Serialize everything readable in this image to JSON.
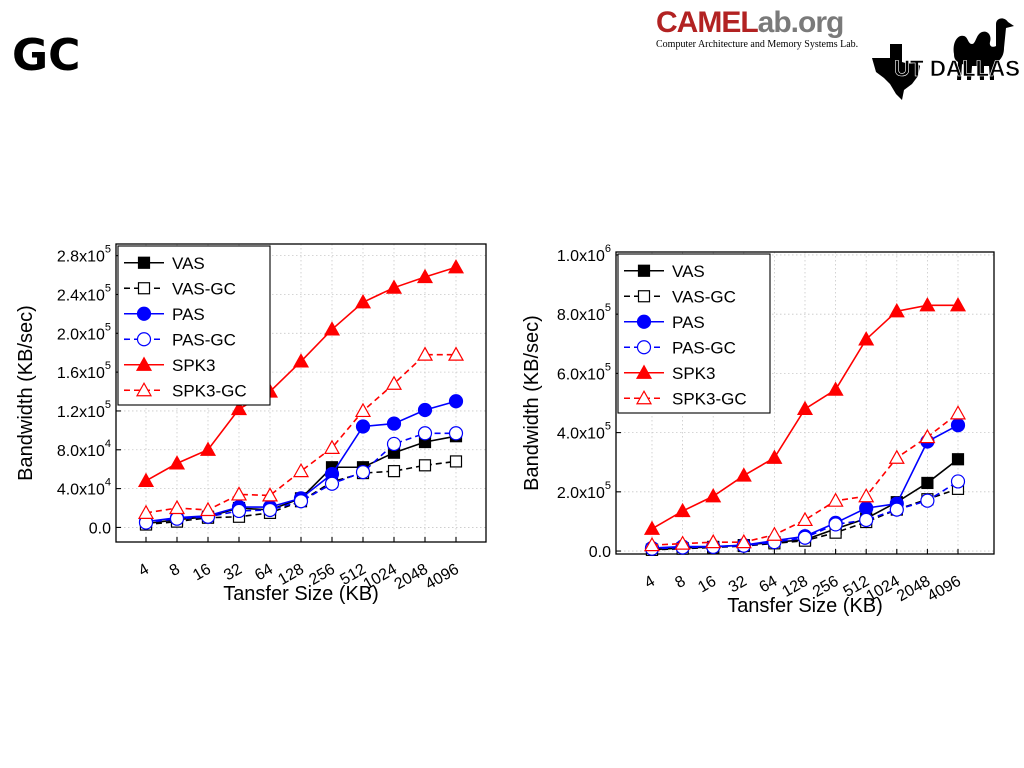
{
  "slide": {
    "title": "GC"
  },
  "logos": {
    "camel_brand_1": "CAMEL",
    "camel_brand_2": "ab.org",
    "camel_subtitle": "Computer Architecture and Memory Systems Lab.",
    "utd_text": "UT DALLAS"
  },
  "chart_data": [
    {
      "type": "line",
      "title": "",
      "xlabel": "Tansfer Size (KB)",
      "ylabel": "Bandwidth (KB/sec)",
      "categories": [
        "4",
        "8",
        "16",
        "32",
        "64",
        "128",
        "256",
        "512",
        "1024",
        "2048",
        "4096"
      ],
      "ylim": [
        -15000,
        292000
      ],
      "yticks": [
        0,
        40000,
        80000,
        120000,
        160000,
        200000,
        240000,
        280000
      ],
      "ytick_labels": [
        {
          "m": "0.0",
          "e": ""
        },
        {
          "m": "4.0x10",
          "e": "4"
        },
        {
          "m": "8.0x10",
          "e": "4"
        },
        {
          "m": "1.2x10",
          "e": "5"
        },
        {
          "m": "1.6x10",
          "e": "5"
        },
        {
          "m": "2.0x10",
          "e": "5"
        },
        {
          "m": "2.4x10",
          "e": "5"
        },
        {
          "m": "2.8x10",
          "e": "5"
        }
      ],
      "grid": true,
      "legend_position": "top-left",
      "series": [
        {
          "name": "VAS",
          "color": "#000000",
          "dashed": false,
          "marker": "square",
          "filled": true,
          "values": [
            4000,
            8000,
            11000,
            20000,
            18000,
            30000,
            62000,
            62000,
            77000,
            88000,
            94000
          ]
        },
        {
          "name": "VAS-GC",
          "color": "#000000",
          "dashed": true,
          "marker": "square",
          "filled": false,
          "values": [
            3000,
            6000,
            10000,
            11000,
            15000,
            27000,
            47000,
            56000,
            58000,
            64000,
            68000
          ]
        },
        {
          "name": "PAS",
          "color": "#0000ff",
          "dashed": false,
          "marker": "circle",
          "filled": true,
          "values": [
            6000,
            10000,
            12000,
            21000,
            21000,
            30000,
            55000,
            104000,
            107000,
            121000,
            130000
          ]
        },
        {
          "name": "PAS-GC",
          "color": "#0000ff",
          "dashed": true,
          "marker": "circle",
          "filled": false,
          "values": [
            5000,
            9000,
            11000,
            17000,
            18000,
            27000,
            45000,
            57000,
            86000,
            97000,
            97000
          ]
        },
        {
          "name": "SPK3",
          "color": "#ff0000",
          "dashed": false,
          "marker": "triangle",
          "filled": true,
          "values": [
            48000,
            66000,
            80000,
            122000,
            140000,
            171000,
            204000,
            232000,
            247000,
            258000,
            268000
          ]
        },
        {
          "name": "SPK3-GC",
          "color": "#ff0000",
          "dashed": true,
          "marker": "triangle",
          "filled": false,
          "values": [
            15000,
            20000,
            18000,
            34000,
            33000,
            58000,
            82000,
            120000,
            148000,
            178000,
            178000
          ]
        }
      ]
    },
    {
      "type": "line",
      "title": "",
      "xlabel": "Tansfer Size (KB)",
      "ylabel": "Bandwidth (KB/sec)",
      "categories": [
        "4",
        "8",
        "16",
        "32",
        "64",
        "128",
        "256",
        "512",
        "1024",
        "2048",
        "4096"
      ],
      "ylim": [
        -10000,
        1010000
      ],
      "yticks": [
        0,
        200000,
        400000,
        600000,
        800000,
        1000000
      ],
      "ytick_labels": [
        {
          "m": "0.0",
          "e": ""
        },
        {
          "m": "2.0x10",
          "e": "5"
        },
        {
          "m": "4.0x10",
          "e": "5"
        },
        {
          "m": "6.0x10",
          "e": "5"
        },
        {
          "m": "8.0x10",
          "e": "5"
        },
        {
          "m": "1.0x10",
          "e": "6"
        }
      ],
      "grid": true,
      "legend_position": "top-left",
      "series": [
        {
          "name": "VAS",
          "color": "#000000",
          "dashed": false,
          "marker": "square",
          "filled": true,
          "values": [
            5000,
            10000,
            14000,
            20000,
            30000,
            38000,
            75000,
            110000,
            165000,
            230000,
            310000
          ]
        },
        {
          "name": "VAS-GC",
          "color": "#000000",
          "dashed": true,
          "marker": "square",
          "filled": false,
          "values": [
            4000,
            8000,
            12000,
            17000,
            26000,
            35000,
            62000,
            98000,
            140000,
            175000,
            210000
          ]
        },
        {
          "name": "PAS",
          "color": "#0000ff",
          "dashed": false,
          "marker": "circle",
          "filled": true,
          "values": [
            10000,
            15000,
            15000,
            20000,
            35000,
            50000,
            95000,
            145000,
            160000,
            370000,
            425000
          ]
        },
        {
          "name": "PAS-GC",
          "color": "#0000ff",
          "dashed": true,
          "marker": "circle",
          "filled": false,
          "values": [
            8000,
            12000,
            14000,
            18000,
            30000,
            45000,
            90000,
            105000,
            140000,
            170000,
            235000
          ]
        },
        {
          "name": "SPK3",
          "color": "#ff0000",
          "dashed": false,
          "marker": "triangle",
          "filled": true,
          "values": [
            75000,
            135000,
            185000,
            255000,
            315000,
            480000,
            545000,
            715000,
            810000,
            830000,
            830000
          ]
        },
        {
          "name": "SPK3-GC",
          "color": "#ff0000",
          "dashed": true,
          "marker": "triangle",
          "filled": false,
          "values": [
            20000,
            25000,
            30000,
            30000,
            55000,
            105000,
            170000,
            185000,
            315000,
            385000,
            465000
          ]
        }
      ]
    }
  ]
}
